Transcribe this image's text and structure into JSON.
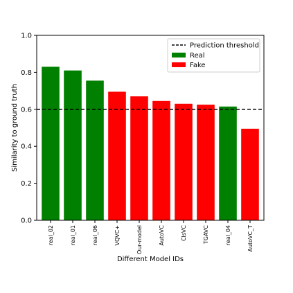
{
  "chart_data": {
    "type": "bar",
    "xlabel": "Different Model IDs",
    "ylabel": "Similarity to ground truth",
    "ylim": [
      0.0,
      1.0
    ],
    "yticks": [
      "0.0",
      "0.2",
      "0.4",
      "0.6",
      "0.8",
      "1.0"
    ],
    "grid": false,
    "legend_position": "top-right",
    "threshold": {
      "value": 0.6,
      "label": "Prediction threshold",
      "style": "dashed",
      "color": "#000000"
    },
    "classes": [
      {
        "name": "Real",
        "color": "#008000"
      },
      {
        "name": "Fake",
        "color": "#ff0000"
      }
    ],
    "categories": [
      "real_02",
      "real_01",
      "real_06",
      "VQVC+",
      "Our-model",
      "AutoVC",
      "ClsVC",
      "TGAVC",
      "real_04",
      "AutoVC_T"
    ],
    "values": [
      0.83,
      0.81,
      0.755,
      0.695,
      0.67,
      0.645,
      0.63,
      0.625,
      0.615,
      0.495
    ],
    "bar_class": [
      "Real",
      "Real",
      "Real",
      "Fake",
      "Fake",
      "Fake",
      "Fake",
      "Fake",
      "Real",
      "Fake"
    ]
  }
}
